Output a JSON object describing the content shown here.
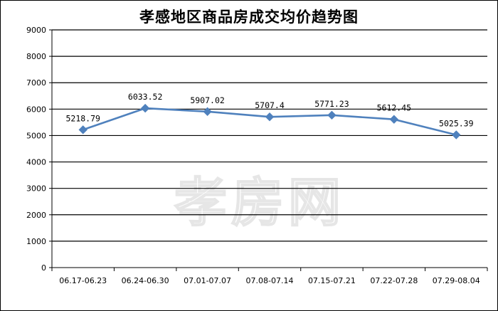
{
  "chart_data": {
    "type": "line",
    "title": "孝感地区商品房成交均价趋势图",
    "xlabel": "",
    "ylabel": "",
    "categories": [
      "06.17-06.23",
      "06.24-06.30",
      "07.01-07.07",
      "07.08-07.14",
      "07.15-07.21",
      "07.22-07.28",
      "07.29-08.04"
    ],
    "series": [
      {
        "values": [
          5218.79,
          6033.52,
          5907.02,
          5707.4,
          5771.23,
          5612.45,
          5025.39
        ]
      }
    ],
    "data_labels": [
      "5218.79",
      "6033.52",
      "5907.02",
      "5707.4",
      "5771.23",
      "5612.45",
      "5025.39"
    ],
    "ylim": [
      0,
      9000
    ],
    "yticks": [
      0,
      1000,
      2000,
      3000,
      4000,
      5000,
      6000,
      7000,
      8000,
      9000
    ],
    "grid": true,
    "legend": "none",
    "line_color": "#4f81bd",
    "marker": "diamond"
  },
  "watermark": "孝房网"
}
